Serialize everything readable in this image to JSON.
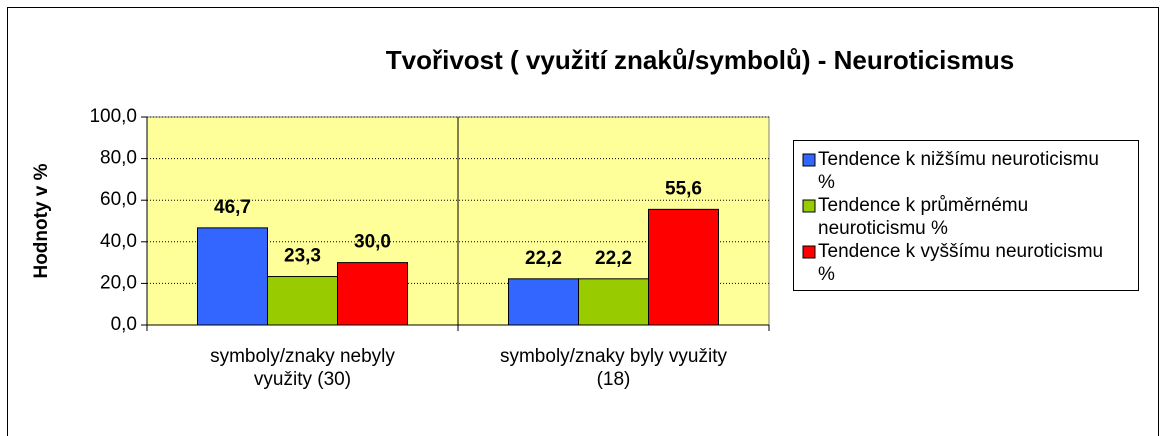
{
  "chart_data": {
    "type": "bar",
    "title": "Tvořivost ( využití znaků/symbolů) - Neuroticismus",
    "y_label": "Hodnoty v %",
    "categories": [
      "symboly/znaky nebyly využity (30)",
      "symboly/znaky byly využity (18)"
    ],
    "series": [
      {
        "name": "Tendence k nižšímu neuroticismu %",
        "color": "#3366ff",
        "values": [
          46.7,
          22.2
        ],
        "value_labels": [
          "46,7",
          "22,2"
        ]
      },
      {
        "name": "Tendence k průměrnému neuroticismu %",
        "color": "#99cc00",
        "values": [
          23.3,
          22.2
        ],
        "value_labels": [
          "23,3",
          "22,2"
        ]
      },
      {
        "name": "Tendence k vyššímu neuroticismu %",
        "color": "#ff0000",
        "values": [
          30.0,
          55.6
        ],
        "value_labels": [
          "30,0",
          "55,6"
        ]
      }
    ],
    "ylim": [
      0,
      100
    ],
    "yticks": [
      {
        "value": 0,
        "label": "0,0"
      },
      {
        "value": 20,
        "label": "20,0"
      },
      {
        "value": 40,
        "label": "40,0"
      },
      {
        "value": 60,
        "label": "60,0"
      },
      {
        "value": 80,
        "label": "80,0"
      },
      {
        "value": 100,
        "label": "100,0"
      }
    ],
    "grid": true,
    "plot_background": "#ffff99",
    "legend": "right"
  }
}
